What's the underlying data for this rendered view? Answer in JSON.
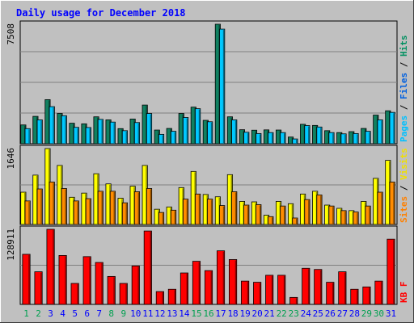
{
  "chart_data": {
    "type": "bar",
    "title": "Daily usage for December 2018",
    "categories": [
      "1",
      "2",
      "3",
      "4",
      "5",
      "6",
      "7",
      "8",
      "9",
      "10",
      "11",
      "12",
      "13",
      "14",
      "15",
      "16",
      "17",
      "18",
      "19",
      "20",
      "21",
      "22",
      "23",
      "24",
      "25",
      "26",
      "27",
      "28",
      "29",
      "30",
      "31"
    ],
    "weekend_days": [
      "1",
      "2",
      "8",
      "9",
      "15",
      "16",
      "22",
      "23",
      "29",
      "30"
    ],
    "panels": [
      {
        "name": "top",
        "max_label": "7508",
        "ylim": [
          0,
          7508
        ],
        "legend": [
          {
            "label": "Pages",
            "color": "#00c0ff"
          },
          {
            "label": " / ",
            "color": "#000000"
          },
          {
            "label": "Files",
            "color": "#0060e0"
          },
          {
            "label": " / ",
            "color": "#000000"
          },
          {
            "label": "Hits",
            "color": "#009060"
          }
        ],
        "series": [
          {
            "name": "Hits",
            "color": "#108060",
            "values": [
              1180,
              1720,
              2770,
              1900,
              1290,
              1250,
              1690,
              1500,
              950,
              1550,
              2430,
              860,
              960,
              1900,
              2300,
              1470,
              7508,
              1690,
              880,
              850,
              870,
              860,
              420,
              1220,
              1150,
              820,
              700,
              760,
              960,
              1800,
              2070
            ]
          },
          {
            "name": "Files",
            "color": "#00c8ff",
            "values": [
              950,
              1500,
              2330,
              1760,
              1030,
              1020,
              1530,
              1360,
              820,
              1330,
              1900,
              590,
              780,
              1650,
              2200,
              1380,
              7200,
              1500,
              720,
              640,
              700,
              700,
              300,
              1140,
              1050,
              700,
              620,
              640,
              780,
              1500,
              1970
            ]
          }
        ]
      },
      {
        "name": "middle",
        "max_label": "1646",
        "ylim": [
          0,
          1646
        ],
        "legend": [
          {
            "label": "Sites",
            "color": "#ff8000"
          },
          {
            "label": " / ",
            "color": "#000000"
          },
          {
            "label": "Visits",
            "color": "#f0e000"
          }
        ],
        "series": [
          {
            "name": "Visits",
            "color": "#ffff00",
            "values": [
              700,
              1070,
              1646,
              1280,
              590,
              680,
              1100,
              880,
              570,
              830,
              1280,
              330,
              380,
              800,
              1150,
              650,
              600,
              1080,
              500,
              490,
              200,
              500,
              450,
              660,
              720,
              420,
              350,
              300,
              500,
              1000,
              1390
            ]
          },
          {
            "name": "Sites",
            "color": "#ff8c00",
            "values": [
              510,
              770,
              920,
              780,
              510,
              560,
              720,
              720,
              470,
              710,
              780,
              260,
              310,
              550,
              660,
              550,
              410,
              710,
              420,
              430,
              170,
              400,
              140,
              540,
              640,
              400,
              300,
              270,
              400,
              700,
              920
            ]
          }
        ]
      },
      {
        "name": "bottom",
        "max_label": "128911",
        "ylim": [
          0,
          128911
        ],
        "legend": [
          {
            "label": "KB F",
            "color": "#ff0000"
          }
        ],
        "series": [
          {
            "name": "KB F",
            "color": "#ff0000",
            "values": [
              86000,
              56000,
              128911,
              84000,
              36000,
              82000,
              72000,
              48000,
              36000,
              66000,
              126000,
              22000,
              26000,
              54000,
              74000,
              58000,
              92000,
              77000,
              40000,
              38000,
              50000,
              50000,
              12000,
              62000,
              60000,
              38000,
              56000,
              26000,
              30000,
              40000,
              112000
            ]
          }
        ]
      }
    ]
  },
  "colors": {
    "page_bg": "#c0c0c0",
    "plot_bg": "#c0c0c0",
    "title_color": "#0000ff",
    "axis_label_weekday": "#0000ff",
    "axis_label_weekend": "#00a050"
  }
}
